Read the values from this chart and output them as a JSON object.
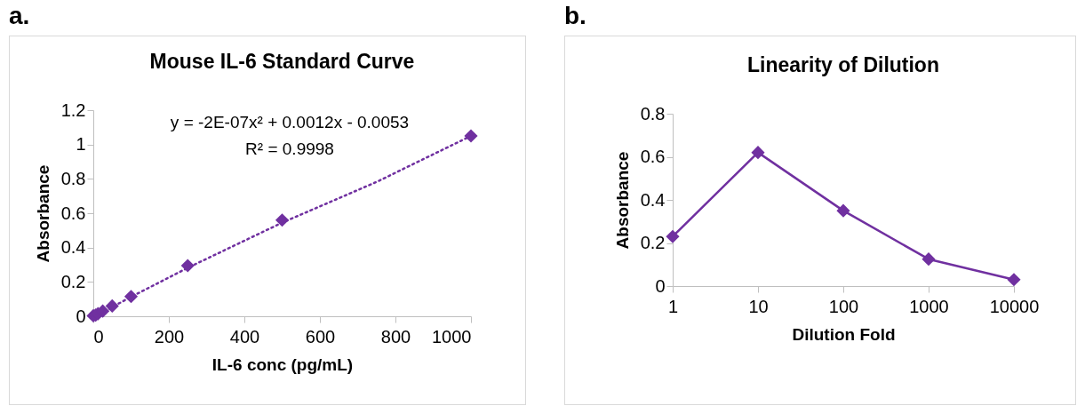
{
  "chart_data": [
    {
      "type": "scatter",
      "title": "Mouse IL-6 Standard Curve",
      "xlabel": "IL-6 conc (pg/mL)",
      "ylabel": "Absorbance",
      "annotations": [
        "a.",
        "y = -2E-07x² + 0.0012x - 0.0053",
        "R² = 0.9998"
      ],
      "series": [
        {
          "x": [
            0,
            6.25,
            12.5,
            25,
            50,
            100,
            250,
            500,
            1000
          ],
          "values": [
            0.003,
            0.007,
            0.015,
            0.03,
            0.06,
            0.115,
            0.295,
            0.56,
            1.05
          ],
          "color": "#7030a0",
          "marker": "diamond"
        },
        {
          "type": "line",
          "x": [
            5,
            100,
            250,
            500,
            750,
            1000
          ],
          "values": [
            0.0,
            0.113,
            0.282,
            0.545,
            0.782,
            1.05
          ],
          "color": "#7030a0",
          "line_style": "dotted",
          "marker": "none"
        }
      ],
      "xlim": [
        0,
        1000
      ],
      "xticks": [
        0,
        200,
        400,
        600,
        800,
        1000
      ],
      "ylim": [
        0,
        1.2
      ],
      "yticks": [
        0,
        0.2,
        0.4,
        0.6,
        0.8,
        1,
        1.2
      ],
      "grid": false,
      "legend": false
    },
    {
      "type": "line",
      "title": "Linearity of Dilution",
      "xlabel": "Dilution Fold",
      "ylabel": "Absorbance",
      "annotations": [
        "b."
      ],
      "categories": [
        "1",
        "10",
        "100",
        "1000",
        "10000"
      ],
      "series": [
        {
          "values": [
            0.23,
            0.62,
            0.35,
            0.125,
            0.03
          ],
          "color": "#7030a0"
        }
      ],
      "marker": "diamond",
      "line_style": "solid",
      "ylim": [
        0,
        0.8
      ],
      "yticks": [
        0,
        0.2,
        0.4,
        0.6,
        0.8
      ],
      "grid": false,
      "legend": false
    }
  ]
}
